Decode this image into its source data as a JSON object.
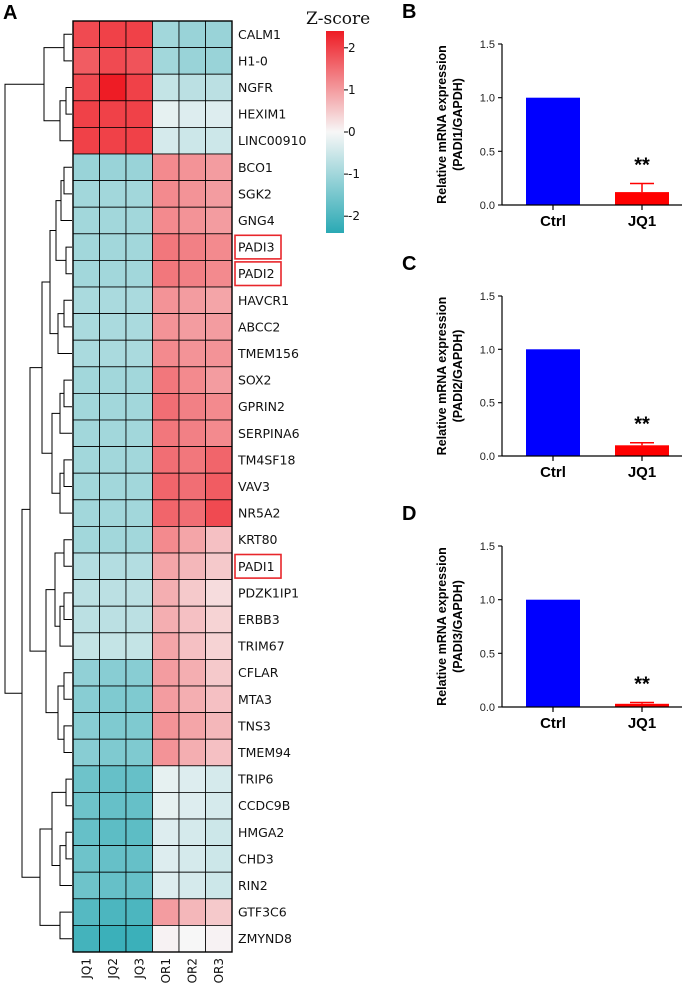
{
  "chart_data": [
    {
      "type": "heatmap",
      "panel": "A",
      "legend_title": "Z-score",
      "legend_ticks": [
        2,
        1,
        0,
        -1,
        -2
      ],
      "zlim": [
        -2.4,
        2.4
      ],
      "colors": {
        "low": "#2aa9b4",
        "mid": "#f7f7f7",
        "high": "#ee1c25"
      },
      "columns": [
        "JQ1",
        "JQ2",
        "JQ3",
        "OR1",
        "OR2",
        "OR3"
      ],
      "rows": [
        "CALM1",
        "H1-0",
        "NGFR",
        "HEXIM1",
        "LINC00910",
        "BCO1",
        "SGK2",
        "GNG4",
        "PADI3",
        "PADI2",
        "HAVCR1",
        "ABCC2",
        "TMEM156",
        "SOX2",
        "GPRIN2",
        "SERPINA6",
        "TM4SF18",
        "VAV3",
        "NR5A2",
        "KRT80",
        "PADI1",
        "PDZK1IP1",
        "ERBB3",
        "TRIM67",
        "CFLAR",
        "MTA3",
        "TNS3",
        "TMEM94",
        "TRIP6",
        "CCDC9B",
        "HMGA2",
        "CHD3",
        "RIN2",
        "GTF3C6",
        "ZMYND8"
      ],
      "highlighted_rows": [
        "PADI3",
        "PADI2",
        "PADI1"
      ],
      "values": [
        [
          1.9,
          2.0,
          2.0,
          -1.0,
          -1.1,
          -1.1
        ],
        [
          1.7,
          1.9,
          1.8,
          -1.0,
          -1.1,
          -1.1
        ],
        [
          1.9,
          2.4,
          2.0,
          -0.6,
          -0.7,
          -0.7
        ],
        [
          2.0,
          2.0,
          2.0,
          -0.2,
          -0.3,
          -0.3
        ],
        [
          2.0,
          2.0,
          2.0,
          -0.4,
          -0.5,
          -0.5
        ],
        [
          -1.1,
          -1.1,
          -1.1,
          1.2,
          1.1,
          1.0
        ],
        [
          -1.0,
          -1.0,
          -1.0,
          1.2,
          1.1,
          1.0
        ],
        [
          -1.0,
          -1.0,
          -1.0,
          1.2,
          1.1,
          1.0
        ],
        [
          -1.0,
          -1.0,
          -1.0,
          1.4,
          1.3,
          1.2
        ],
        [
          -1.0,
          -1.0,
          -1.0,
          1.4,
          1.3,
          1.2
        ],
        [
          -0.9,
          -0.9,
          -0.9,
          1.1,
          1.0,
          0.9
        ],
        [
          -0.9,
          -0.9,
          -0.9,
          1.1,
          1.0,
          1.0
        ],
        [
          -0.9,
          -0.9,
          -0.9,
          1.2,
          1.1,
          1.1
        ],
        [
          -1.0,
          -1.0,
          -1.0,
          1.4,
          1.2,
          1.0
        ],
        [
          -1.0,
          -1.0,
          -1.0,
          1.5,
          1.3,
          1.2
        ],
        [
          -1.0,
          -1.0,
          -1.0,
          1.4,
          1.3,
          1.2
        ],
        [
          -1.0,
          -1.0,
          -1.0,
          1.5,
          1.4,
          1.6
        ],
        [
          -1.0,
          -1.0,
          -1.0,
          1.6,
          1.5,
          1.7
        ],
        [
          -1.0,
          -1.0,
          -1.0,
          1.6,
          1.5,
          1.9
        ],
        [
          -1.0,
          -1.0,
          -1.0,
          1.2,
          0.9,
          0.6
        ],
        [
          -0.8,
          -0.8,
          -0.8,
          0.9,
          0.7,
          0.5
        ],
        [
          -0.7,
          -0.7,
          -0.7,
          0.8,
          0.5,
          0.3
        ],
        [
          -0.7,
          -0.7,
          -0.7,
          0.8,
          0.6,
          0.4
        ],
        [
          -0.6,
          -0.6,
          -0.6,
          0.9,
          0.6,
          0.4
        ],
        [
          -1.2,
          -1.3,
          -1.3,
          1.0,
          0.8,
          0.5
        ],
        [
          -1.3,
          -1.4,
          -1.4,
          1.0,
          0.8,
          0.6
        ],
        [
          -1.3,
          -1.4,
          -1.4,
          1.1,
          0.9,
          0.7
        ],
        [
          -1.3,
          -1.4,
          -1.4,
          1.1,
          0.8,
          0.6
        ],
        [
          -1.6,
          -1.7,
          -1.7,
          -0.2,
          -0.3,
          -0.4
        ],
        [
          -1.6,
          -1.7,
          -1.7,
          -0.2,
          -0.3,
          -0.4
        ],
        [
          -1.7,
          -1.8,
          -1.8,
          -0.3,
          -0.4,
          -0.5
        ],
        [
          -1.6,
          -1.7,
          -1.7,
          -0.3,
          -0.4,
          -0.5
        ],
        [
          -1.6,
          -1.7,
          -1.7,
          -0.3,
          -0.4,
          -0.5
        ],
        [
          -1.9,
          -2.0,
          -2.0,
          1.0,
          0.7,
          0.5
        ],
        [
          -2.1,
          -2.2,
          -2.2,
          0.05,
          0.0,
          0.05
        ]
      ]
    },
    {
      "type": "bar",
      "panel": "B",
      "categories": [
        "Ctrl",
        "JQ1"
      ],
      "values": [
        1.0,
        0.12
      ],
      "errors": [
        0,
        0.08
      ],
      "colors": [
        "#0000ff",
        "#ff0000"
      ],
      "ylabel_line1": "Relative mRNA expression",
      "ylabel_line2": "(PADI1/GAPDH)",
      "ylim": [
        0,
        1.5
      ],
      "yticks": [
        "0.0",
        "0.5",
        "1.0",
        "1.5"
      ],
      "significance": "**"
    },
    {
      "type": "bar",
      "panel": "C",
      "categories": [
        "Ctrl",
        "JQ1"
      ],
      "values": [
        1.0,
        0.1
      ],
      "errors": [
        0,
        0.025
      ],
      "colors": [
        "#0000ff",
        "#ff0000"
      ],
      "ylabel_line1": "Relative mRNA expression",
      "ylabel_line2": "(PADI2/GAPDH)",
      "ylim": [
        0,
        1.5
      ],
      "yticks": [
        "0.0",
        "0.5",
        "1.0",
        "1.5"
      ],
      "significance": "**"
    },
    {
      "type": "bar",
      "panel": "D",
      "categories": [
        "Ctrl",
        "JQ1"
      ],
      "values": [
        1.0,
        0.03
      ],
      "errors": [
        0,
        0.012
      ],
      "colors": [
        "#0000ff",
        "#ff0000"
      ],
      "ylabel_line1": "Relative mRNA expression",
      "ylabel_line2": "(PADI3/GAPDH)",
      "ylim": [
        0,
        1.5
      ],
      "yticks": [
        "0.0",
        "0.5",
        "1.0",
        "1.5"
      ],
      "significance": "**"
    }
  ]
}
